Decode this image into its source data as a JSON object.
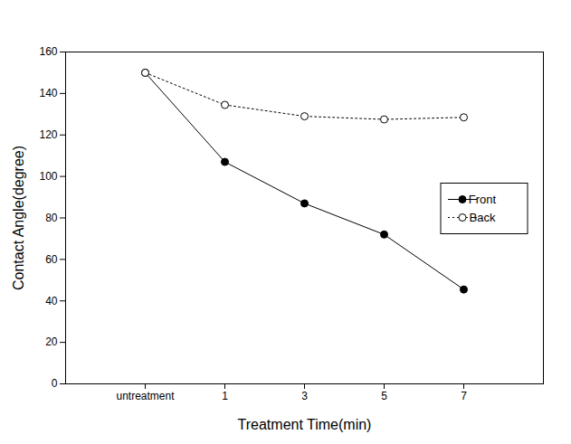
{
  "chart_data": {
    "type": "line",
    "x_label": "Treatment Time(min)",
    "y_label": "Contact Angle(degree)",
    "categories": [
      "untreatment",
      "1",
      "3",
      "5",
      "7"
    ],
    "series": [
      {
        "name": "Front",
        "color": "#000000",
        "marker": "filled-circle",
        "line_style": "solid",
        "values": [
          150,
          107,
          87,
          72,
          45.5
        ]
      },
      {
        "name": "Back",
        "color": "#000000",
        "marker": "open-circle",
        "line_style": "dotted",
        "values": [
          150,
          134.5,
          129,
          127.5,
          128.5
        ]
      }
    ],
    "ylim": [
      0,
      160
    ],
    "yticks": [
      0,
      20,
      40,
      60,
      80,
      100,
      120,
      140,
      160
    ],
    "legend": "right"
  }
}
